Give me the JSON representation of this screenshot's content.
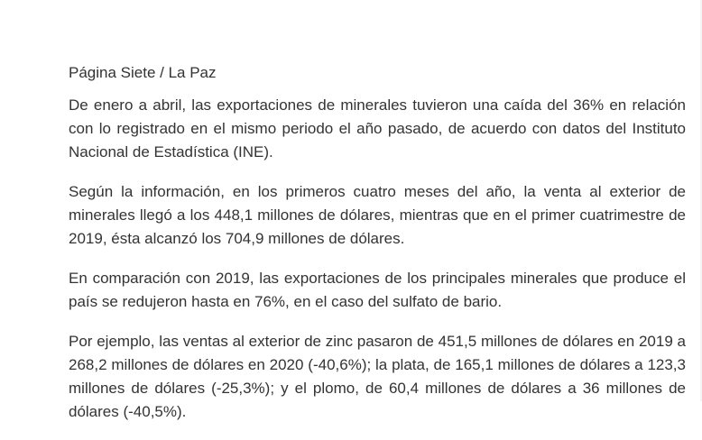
{
  "article": {
    "source": "Página Siete /  La Paz",
    "paragraphs": [
      "De enero a abril, las exportaciones de minerales tuvieron una caída del 36% en relación con lo registrado en el mismo periodo el año pasado, de acuerdo con datos del Instituto Nacional de Estadística (INE).",
      "Según la información, en los primeros cuatro meses del año, la venta al exterior de minerales llegó a los 448,1 millones de dólares, mientras que  en el primer cuatrimestre de 2019, ésta alcanzó los 704,9 millones de dólares.",
      "En comparación con 2019, las exportaciones de los principales minerales que produce el país se redujeron hasta en 76%, en el caso del sulfato de bario.",
      "Por ejemplo, las ventas al exterior de zinc pasaron de 451,5 millones de dólares en 2019 a 268,2 millones de dólares en 2020 (-40,6%);  la plata, de 165,1 millones de dólares a 123,3 millones de dólares (-25,3%); y el plomo, de 60,4 millones de dólares a 36 millones de dólares (-40,5%)."
    ]
  }
}
